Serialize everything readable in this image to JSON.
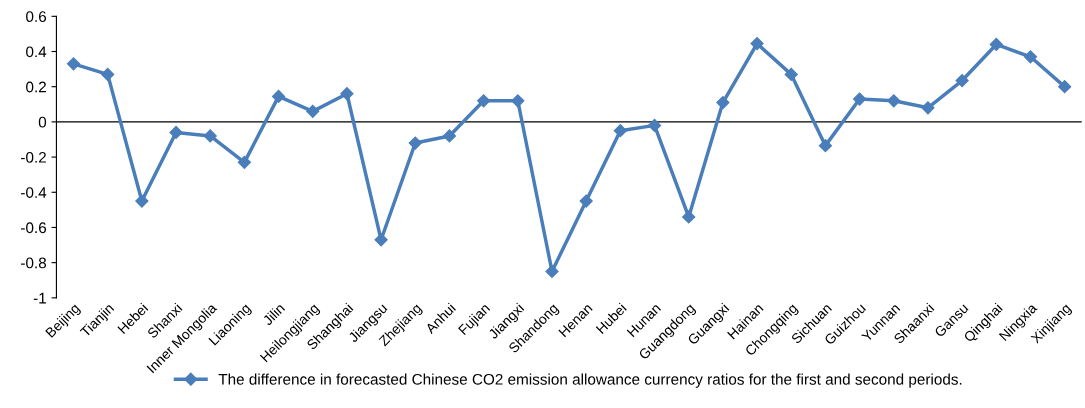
{
  "chart_data": {
    "type": "line",
    "categories": [
      "Beijing",
      "Tianjin",
      "Hebei",
      "Shanxi",
      "Inner Mongolia",
      "Liaoning",
      "Jilin",
      "Heilongjiang",
      "Shanghai",
      "Jiangsu",
      "Zhejiang",
      "Anhui",
      "Fujian",
      "Jiangxi",
      "Shandong",
      "Henan",
      "Hubei",
      "Hunan",
      "Guangdong",
      "Guangxi",
      "Hainan",
      "Chongqing",
      "Sichuan",
      "Guizhou",
      "Yunnan",
      "Shaanxi",
      "Gansu",
      "Qinghai",
      "Ningxia",
      "Xinjiang"
    ],
    "series": [
      {
        "name": "The difference in forecasted Chinese CO2 emission allowance currency ratios for the first and second periods.",
        "color": "#4a7ebb",
        "values": [
          0.33,
          0.27,
          -0.45,
          -0.06,
          -0.08,
          -0.23,
          0.145,
          0.06,
          0.16,
          -0.67,
          -0.12,
          -0.08,
          0.12,
          0.12,
          -0.85,
          -0.45,
          -0.05,
          -0.02,
          -0.54,
          0.11,
          0.445,
          0.27,
          -0.135,
          0.13,
          0.12,
          0.08,
          0.235,
          0.44,
          0.37,
          0.2
        ]
      }
    ],
    "ylim": [
      -1,
      0.6
    ],
    "yticks": [
      {
        "value": -1,
        "label": "-1"
      },
      {
        "value": -0.8,
        "label": "-0.8"
      },
      {
        "value": -0.6,
        "label": "-0.6"
      },
      {
        "value": -0.4,
        "label": "-0.4"
      },
      {
        "value": -0.2,
        "label": "-0.2"
      },
      0,
      0.2,
      0.4,
      0.6
    ],
    "marker": "diamond",
    "line_style": "solid",
    "legend": "bottom",
    "grid": false,
    "ref_lines": [
      {
        "axis": "y",
        "value": 0,
        "color": "#000000",
        "line_style": "solid"
      }
    ]
  }
}
